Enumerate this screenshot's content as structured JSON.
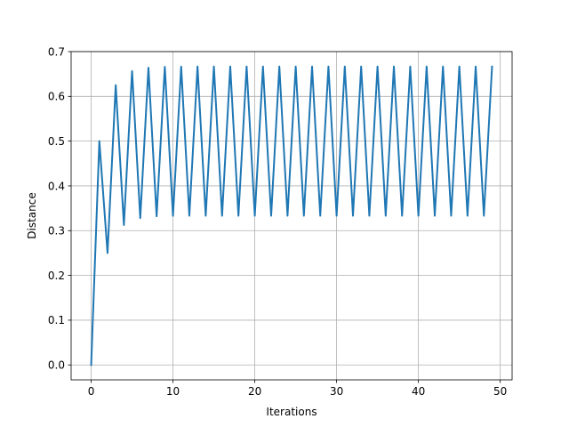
{
  "chart_data": {
    "type": "line",
    "title": "",
    "xlabel": "Iterations",
    "ylabel": "Distance",
    "xlim": [
      -2.45,
      51.45
    ],
    "ylim": [
      -0.0333,
      0.7
    ],
    "xticks": [
      0,
      10,
      20,
      30,
      40,
      50
    ],
    "yticks": [
      0.0,
      0.1,
      0.2,
      0.3,
      0.4,
      0.5,
      0.6,
      0.7
    ],
    "xtick_labels": [
      "0",
      "10",
      "20",
      "30",
      "40",
      "50"
    ],
    "ytick_labels": [
      "0.0",
      "0.1",
      "0.2",
      "0.3",
      "0.4",
      "0.5",
      "0.6",
      "0.7"
    ],
    "grid": true,
    "legend": "none",
    "line_color": "#1f77b4",
    "grid_color": "#b0b0b0",
    "series": [
      {
        "x": [
          0,
          1,
          2,
          3,
          4,
          5,
          6,
          7,
          8,
          9,
          10,
          11,
          12,
          13,
          14,
          15,
          16,
          17,
          18,
          19,
          20,
          21,
          22,
          23,
          24,
          25,
          26,
          27,
          28,
          29,
          30,
          31,
          32,
          33,
          34,
          35,
          36,
          37,
          38,
          39,
          40,
          41,
          42,
          43,
          44,
          45,
          46,
          47,
          48,
          49
        ],
        "values": [
          0.0,
          0.5,
          0.25,
          0.625,
          0.3125,
          0.6563,
          0.3281,
          0.6641,
          0.332,
          0.666,
          0.333,
          0.6665,
          0.3333,
          0.6667,
          0.3333,
          0.6667,
          0.3333,
          0.6667,
          0.3333,
          0.6667,
          0.3333,
          0.6667,
          0.3333,
          0.6667,
          0.3333,
          0.6667,
          0.3333,
          0.6667,
          0.3333,
          0.6667,
          0.3333,
          0.6667,
          0.3333,
          0.6667,
          0.3333,
          0.6667,
          0.3333,
          0.6667,
          0.3333,
          0.6667,
          0.3333,
          0.6667,
          0.3333,
          0.6667,
          0.3333,
          0.6667,
          0.3333,
          0.6667,
          0.3333,
          0.6667
        ]
      }
    ]
  }
}
